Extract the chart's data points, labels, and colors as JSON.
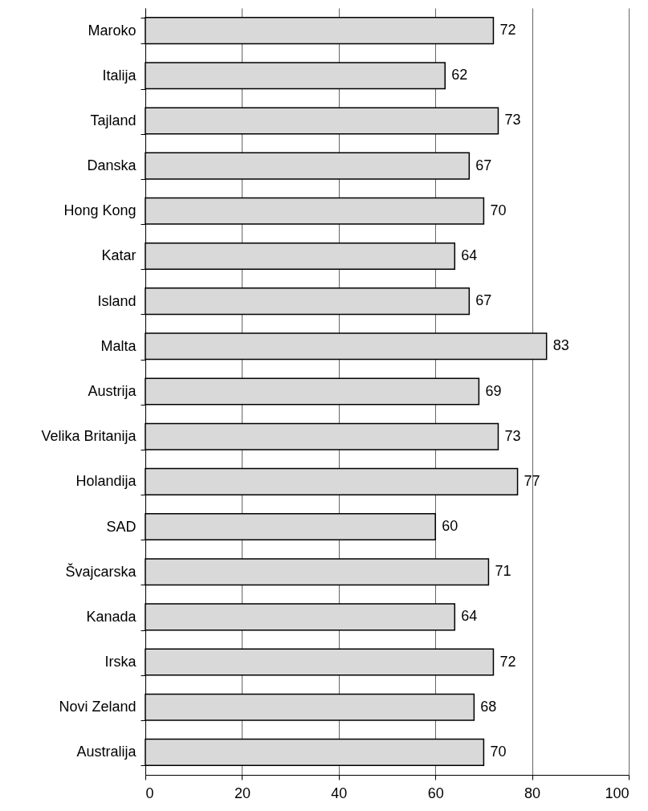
{
  "chart_data": {
    "type": "bar",
    "orientation": "horizontal",
    "categories": [
      "Maroko",
      "Italija",
      "Tajland",
      "Danska",
      "Hong Kong",
      "Katar",
      "Island",
      "Malta",
      "Austrija",
      "Velika Britanija",
      "Holandija",
      "SAD",
      "Švajcarska",
      "Kanada",
      "Irska",
      "Novi Zeland",
      "Australija"
    ],
    "values": [
      72,
      62,
      73,
      67,
      70,
      64,
      67,
      83,
      69,
      73,
      77,
      60,
      71,
      64,
      72,
      68,
      70
    ],
    "color": "#d9d9d9",
    "xlim": [
      0,
      100
    ],
    "xticks": [
      0,
      20,
      40,
      60,
      80,
      100
    ],
    "grid": "x",
    "data_labels": true
  }
}
